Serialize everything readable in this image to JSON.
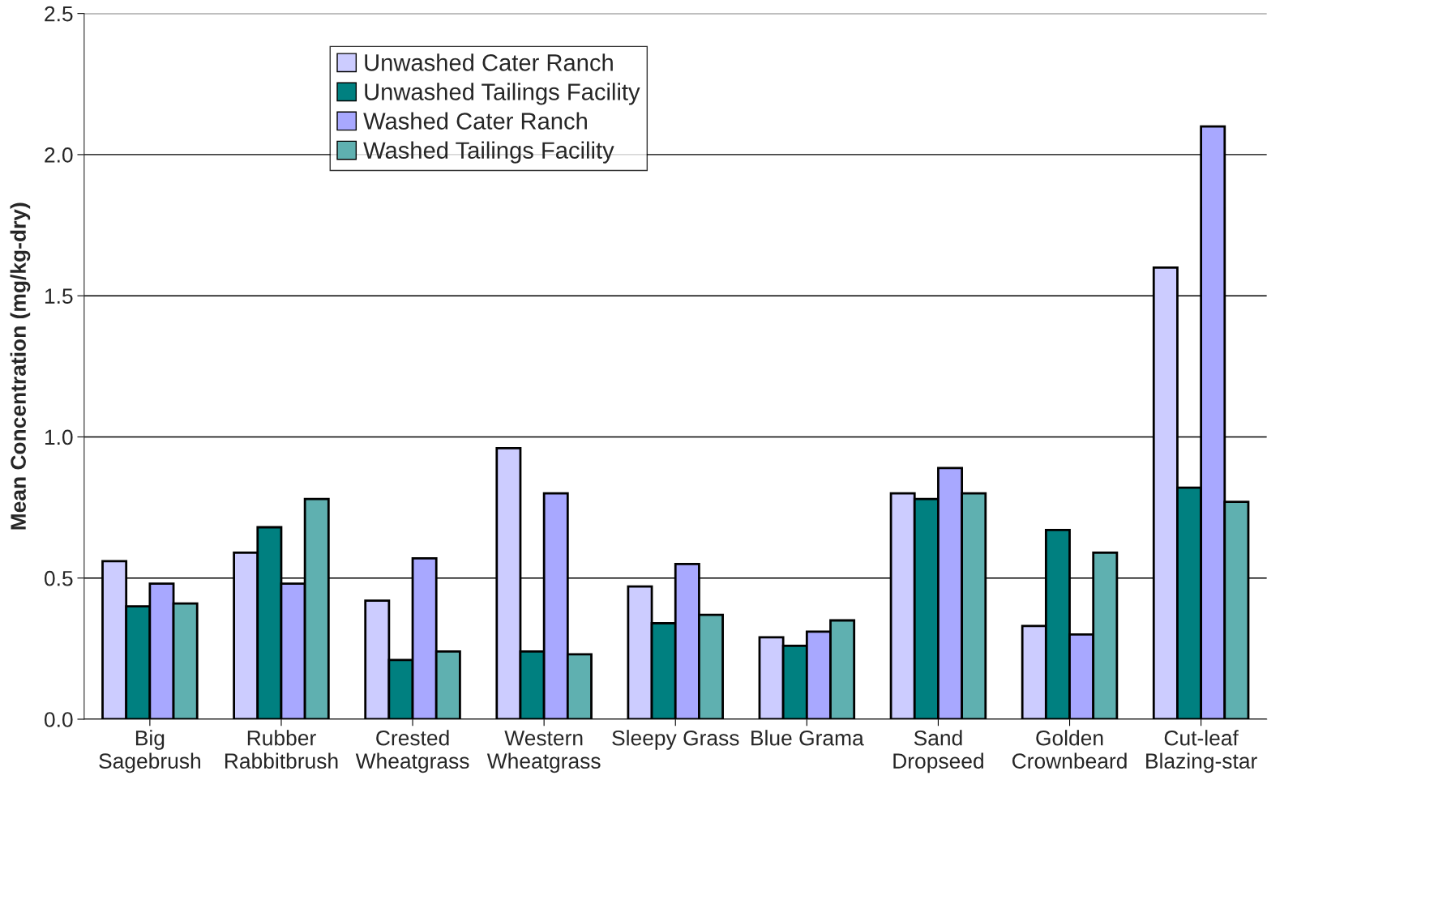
{
  "chart_data": {
    "type": "bar",
    "ylabel": "Mean Concentration (mg/kg-dry)",
    "categories": [
      "Big\nSagebrush",
      "Rubber\nRabbitbrush",
      "Crested\nWheatgrass",
      "Western\nWheatgrass",
      "Sleepy Grass",
      "Blue Grama",
      "Sand\nDropseed",
      "Golden\nCrownbeard",
      "Cut-leaf\nBlazing-star"
    ],
    "series": [
      {
        "name": "Unwashed Cater Ranch",
        "color": "#ccccff",
        "values": [
          0.56,
          0.59,
          0.42,
          0.96,
          0.47,
          0.29,
          0.8,
          0.33,
          1.6
        ]
      },
      {
        "name": "Unwashed Tailings Facility",
        "color": "#008080",
        "values": [
          0.4,
          0.68,
          0.21,
          0.24,
          0.34,
          0.26,
          0.78,
          0.67,
          0.82
        ]
      },
      {
        "name": "Washed Cater Ranch",
        "color": "#a8a8ff",
        "values": [
          0.48,
          0.48,
          0.57,
          0.8,
          0.55,
          0.31,
          0.89,
          0.3,
          2.1
        ]
      },
      {
        "name": "Washed Tailings Facility",
        "color": "#5fb0b0",
        "values": [
          0.41,
          0.78,
          0.24,
          0.23,
          0.37,
          0.35,
          0.8,
          0.59,
          0.77
        ]
      }
    ],
    "ylim": [
      0,
      2.5
    ],
    "yticks": [
      {
        "value": 0,
        "label": "0.0"
      },
      {
        "value": 0.5,
        "label": "0.5"
      },
      {
        "value": 1,
        "label": "1.0"
      },
      {
        "value": 1.5,
        "label": "1.5"
      },
      {
        "value": 2,
        "label": "2.0"
      },
      {
        "value": 2.5,
        "label": "2.5"
      }
    ],
    "grid": "y",
    "legend": "top left"
  }
}
